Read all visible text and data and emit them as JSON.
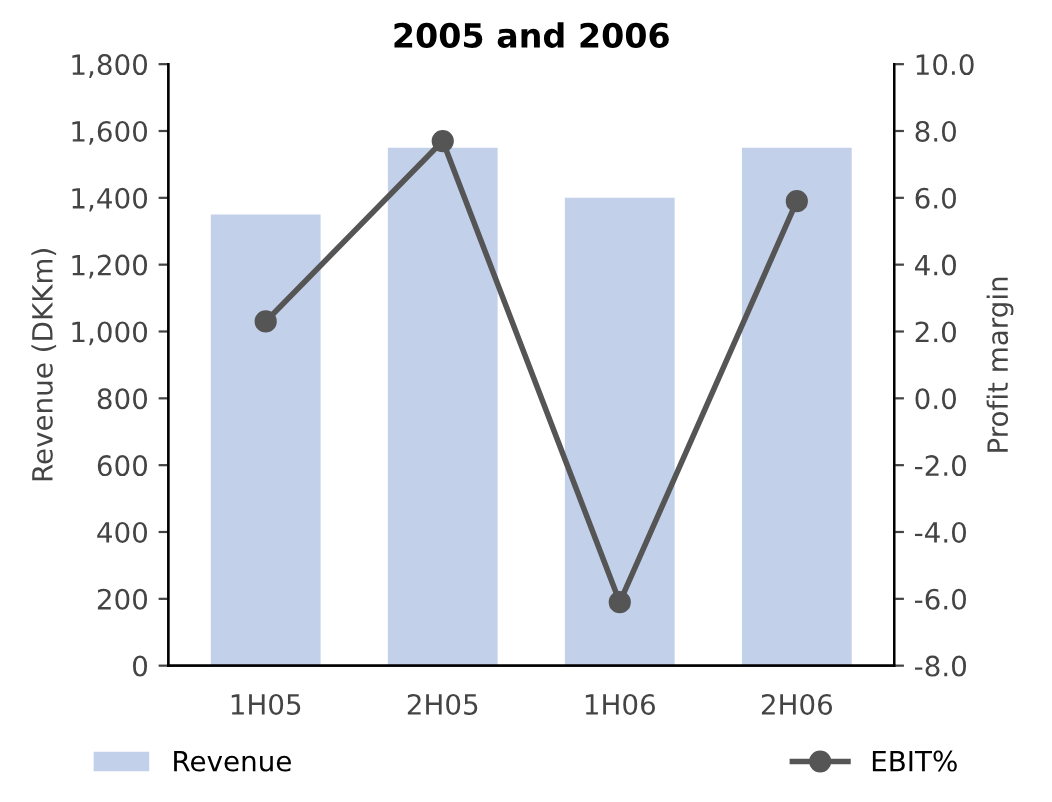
{
  "chart_data": {
    "type": "bar",
    "title": "2005 and 2006",
    "ylabel": "Revenue (DKKm)",
    "y2label": "Profit margin",
    "categories": [
      "1H05",
      "2H05",
      "1H06",
      "2H06"
    ],
    "series": [
      {
        "name": "Revenue",
        "color": "#c3d0ea",
        "values": [
          1350,
          1550,
          1400,
          1550
        ]
      },
      {
        "name": "EBIT%",
        "type": "line",
        "axis": "y2",
        "color": "#555555",
        "marker": "circle",
        "values": [
          2.3,
          7.7,
          -6.1,
          5.9
        ]
      }
    ],
    "ylim": [
      0,
      1800
    ],
    "yticks": [
      {
        "value": 0,
        "label": "0"
      },
      {
        "value": 200,
        "label": "200"
      },
      {
        "value": 400,
        "label": "400"
      },
      {
        "value": 600,
        "label": "600"
      },
      {
        "value": 800,
        "label": "800"
      },
      {
        "value": 1000,
        "label": "1,000"
      },
      {
        "value": 1200,
        "label": "1,200"
      },
      {
        "value": 1400,
        "label": "1,400"
      },
      {
        "value": 1600,
        "label": "1,600"
      },
      {
        "value": 1800,
        "label": "1,800"
      }
    ],
    "y2lim": [
      -8,
      10
    ],
    "y2ticks": [
      {
        "value": -8,
        "label": "-8.0"
      },
      {
        "value": -6,
        "label": "-6.0"
      },
      {
        "value": -4,
        "label": "-4.0"
      },
      {
        "value": -2,
        "label": "-2.0"
      },
      {
        "value": 0,
        "label": "0.0"
      },
      {
        "value": 2,
        "label": "2.0"
      },
      {
        "value": 4,
        "label": "4.0"
      },
      {
        "value": 6,
        "label": "6.0"
      },
      {
        "value": 8,
        "label": "8.0"
      },
      {
        "value": 10,
        "label": "10.0"
      }
    ],
    "grid": false,
    "legend": "bottom"
  }
}
